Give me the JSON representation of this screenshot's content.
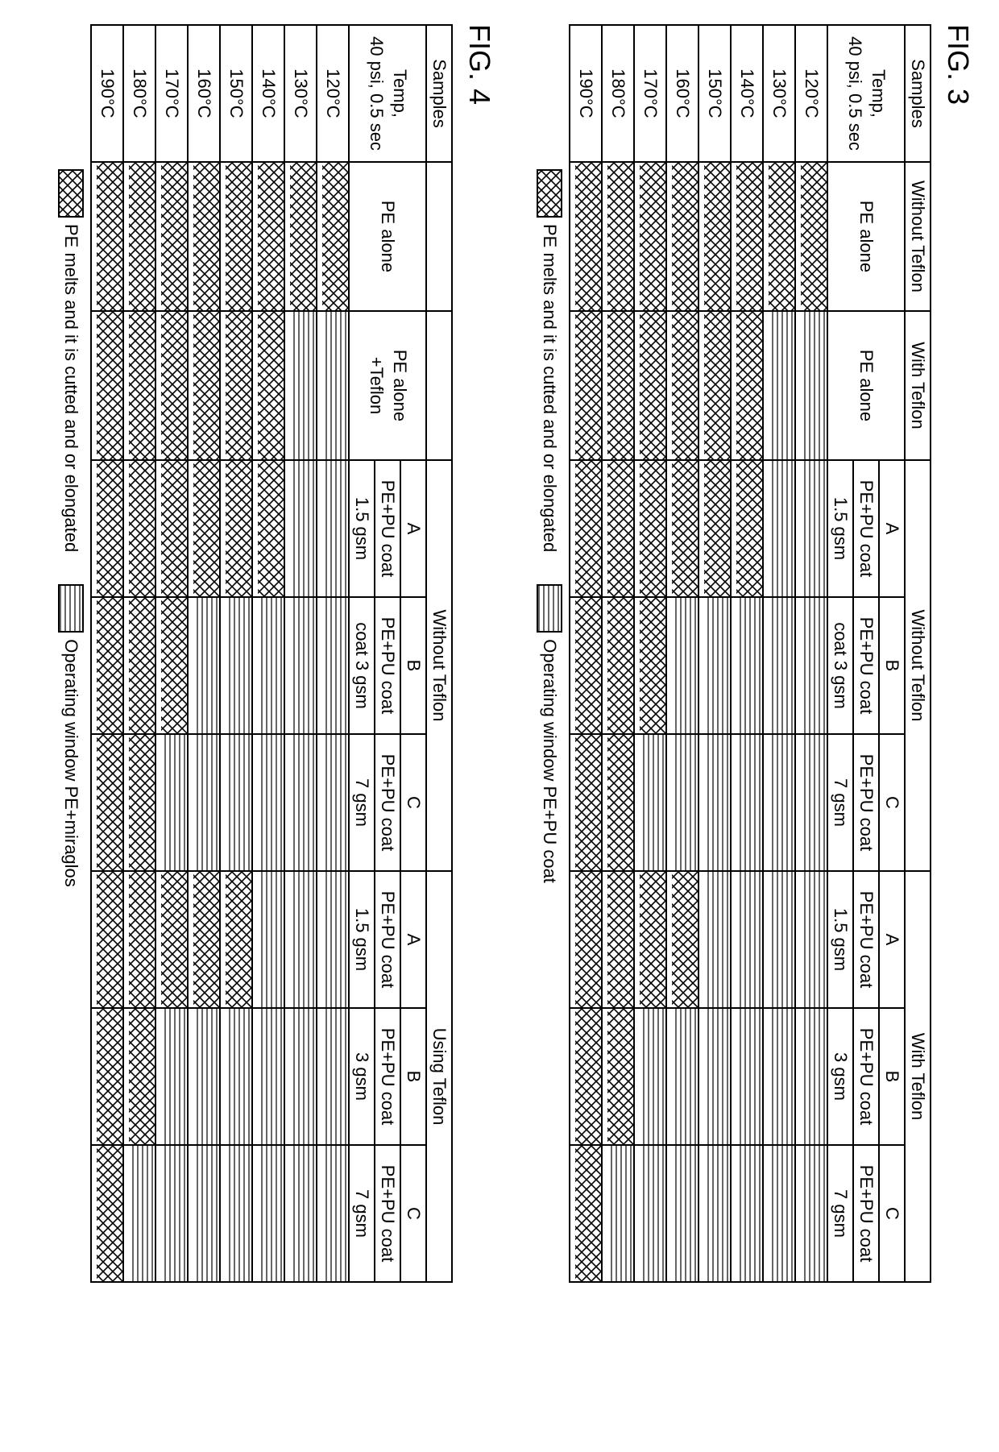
{
  "patterns": {
    "cross": {
      "type": "crosshatch",
      "stroke": "#000000",
      "bg": "#ffffff",
      "spacing": 10,
      "strokeWidth": 2
    },
    "lines": {
      "type": "hlines",
      "stroke": "#000000",
      "bg": "#ffffff",
      "spacing": 6,
      "strokeWidth": 1.2
    }
  },
  "legend_items": [
    {
      "pattern": "cross",
      "label": "PE melts and it is cutted and or elongated"
    },
    {
      "pattern": "lines",
      "label_key_fig3": "Operating window PE+PU coat",
      "label_key_fig4": "Operating window PE+miraglos"
    }
  ],
  "figures": [
    {
      "id": "fig3",
      "label": "FIG. 3",
      "samples_header": "Samples",
      "temp_header": "Temp, 40 psi, 0.5 sec",
      "groups": [
        {
          "label": "Without Teflon",
          "cols": [
            {
              "label": "PE alone",
              "sub": ""
            }
          ]
        },
        {
          "label": "With Teflon",
          "cols": [
            {
              "label": "PE alone",
              "sub": ""
            }
          ]
        },
        {
          "label": "Without Teflon",
          "cols": [
            {
              "code": "A",
              "label": "PE+PU coat",
              "sub": "1.5 gsm"
            },
            {
              "code": "B",
              "label": "PE+PU coat",
              "sub": "coat 3 gsm"
            },
            {
              "code": "C",
              "label": "PE+PU coat",
              "sub": "7 gsm"
            }
          ]
        },
        {
          "label": "With Teflon",
          "cols": [
            {
              "code": "A",
              "label": "PE+PU coat",
              "sub": "1.5 gsm"
            },
            {
              "code": "B",
              "label": "PE+PU coat",
              "sub": "3 gsm"
            },
            {
              "code": "C",
              "label": "PE+PU coat",
              "sub": "7 gsm"
            }
          ]
        }
      ],
      "rows": [
        {
          "temp": "120°C",
          "cells": [
            "cross",
            "lines",
            "lines",
            "lines",
            "lines",
            "lines",
            "lines",
            "lines"
          ]
        },
        {
          "temp": "130°C",
          "cells": [
            "cross",
            "lines",
            "lines",
            "lines",
            "lines",
            "lines",
            "lines",
            "lines"
          ]
        },
        {
          "temp": "140°C",
          "cells": [
            "cross",
            "cross",
            "cross",
            "lines",
            "lines",
            "lines",
            "lines",
            "lines"
          ]
        },
        {
          "temp": "150°C",
          "cells": [
            "cross",
            "cross",
            "cross",
            "lines",
            "lines",
            "lines",
            "lines",
            "lines"
          ]
        },
        {
          "temp": "160°C",
          "cells": [
            "cross",
            "cross",
            "cross",
            "lines",
            "lines",
            "cross",
            "lines",
            "lines"
          ]
        },
        {
          "temp": "170°C",
          "cells": [
            "cross",
            "cross",
            "cross",
            "cross",
            "lines",
            "cross",
            "lines",
            "lines"
          ]
        },
        {
          "temp": "180°C",
          "cells": [
            "cross",
            "cross",
            "cross",
            "cross",
            "cross",
            "cross",
            "cross",
            "lines"
          ]
        },
        {
          "temp": "190°C",
          "cells": [
            "cross",
            "cross",
            "cross",
            "cross",
            "cross",
            "cross",
            "cross",
            "cross"
          ]
        }
      ],
      "legend_label2": "Operating window PE+PU coat"
    },
    {
      "id": "fig4",
      "label": "FIG. 4",
      "samples_header": "Samples",
      "temp_header": "Temp, 40 psi, 0.5 sec",
      "groups": [
        {
          "label": "",
          "cols": [
            {
              "label": "PE alone",
              "sub": ""
            }
          ]
        },
        {
          "label": "",
          "cols": [
            {
              "label": "PE alone +Teflon",
              "sub": ""
            }
          ]
        },
        {
          "label": "Without Teflon",
          "cols": [
            {
              "code": "A",
              "label": "PE+PU coat",
              "sub": "1.5 gsm"
            },
            {
              "code": "B",
              "label": "PE+PU coat",
              "sub": "coat 3 gsm"
            },
            {
              "code": "C",
              "label": "PE+PU coat",
              "sub": "7 gsm"
            }
          ]
        },
        {
          "label": "Using Teflon",
          "cols": [
            {
              "code": "A",
              "label": "PE+PU coat",
              "sub": "1.5 gsm"
            },
            {
              "code": "B",
              "label": "PE+PU coat",
              "sub": "3 gsm"
            },
            {
              "code": "C",
              "label": "PE+PU coat",
              "sub": "7 gsm"
            }
          ]
        }
      ],
      "rows": [
        {
          "temp": "120°C",
          "cells": [
            "cross",
            "lines",
            "lines",
            "lines",
            "lines",
            "lines",
            "lines",
            "lines"
          ]
        },
        {
          "temp": "130°C",
          "cells": [
            "cross",
            "lines",
            "lines",
            "lines",
            "lines",
            "lines",
            "lines",
            "lines"
          ]
        },
        {
          "temp": "140°C",
          "cells": [
            "cross",
            "cross",
            "cross",
            "lines",
            "lines",
            "lines",
            "lines",
            "lines"
          ]
        },
        {
          "temp": "150°C",
          "cells": [
            "cross",
            "cross",
            "cross",
            "lines",
            "lines",
            "cross",
            "lines",
            "lines"
          ]
        },
        {
          "temp": "160°C",
          "cells": [
            "cross",
            "cross",
            "cross",
            "lines",
            "lines",
            "cross",
            "lines",
            "lines"
          ]
        },
        {
          "temp": "170°C",
          "cells": [
            "cross",
            "cross",
            "cross",
            "cross",
            "lines",
            "cross",
            "lines",
            "lines"
          ]
        },
        {
          "temp": "180°C",
          "cells": [
            "cross",
            "cross",
            "cross",
            "cross",
            "cross",
            "cross",
            "cross",
            "lines"
          ]
        },
        {
          "temp": "190°C",
          "cells": [
            "cross",
            "cross",
            "cross",
            "cross",
            "cross",
            "cross",
            "cross",
            "cross"
          ]
        }
      ],
      "legend_label2": "Operating window PE+miraglos"
    }
  ]
}
